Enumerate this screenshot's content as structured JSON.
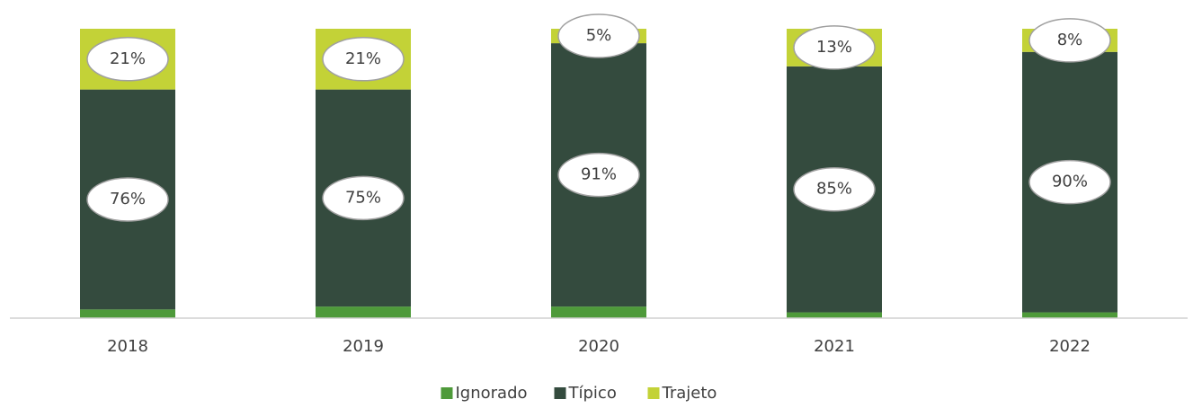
{
  "chart_data": {
    "type": "stacked_bar",
    "categories": [
      "2018",
      "2019",
      "2020",
      "2021",
      "2022"
    ],
    "series": [
      {
        "name": "Ignorado",
        "color": "#4e9a3a",
        "values": [
          3,
          4,
          4,
          2,
          2
        ]
      },
      {
        "name": "Típico",
        "color": "#344b3e",
        "values": [
          76,
          75,
          91,
          85,
          90
        ],
        "value_labels": [
          "76%",
          "75%",
          "91%",
          "85%",
          "90%"
        ]
      },
      {
        "name": "Trajeto",
        "color": "#c3d237",
        "values": [
          21,
          21,
          5,
          13,
          8
        ],
        "value_labels": [
          "21%",
          "21%",
          "5%",
          "13%",
          "8%"
        ]
      }
    ],
    "ylim": [
      0,
      100
    ],
    "legend": "bottom"
  }
}
